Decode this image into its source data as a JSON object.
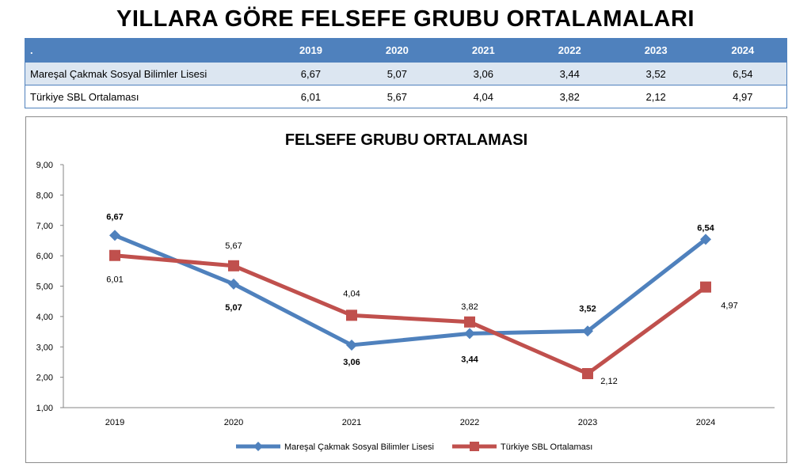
{
  "page_title": "YILLARA GÖRE FELSEFE GRUBU  ORTALAMALARI",
  "table": {
    "corner": ".",
    "years": [
      "2019",
      "2020",
      "2021",
      "2022",
      "2023",
      "2024"
    ],
    "rows": [
      {
        "label": "Mareşal Çakmak Sosyal Bilimler Lisesi",
        "values": [
          "6,67",
          "5,07",
          "3,06",
          "3,44",
          "3,52",
          "6,54"
        ]
      },
      {
        "label": "Türkiye SBL Ortalaması",
        "values": [
          "6,01",
          "5,67",
          "4,04",
          "3,82",
          "2,12",
          "4,97"
        ]
      }
    ]
  },
  "chart_data": {
    "type": "line",
    "title": "FELSEFE GRUBU ORTALAMASI",
    "categories": [
      "2019",
      "2020",
      "2021",
      "2022",
      "2023",
      "2024"
    ],
    "ylim": [
      1,
      9
    ],
    "yticks": [
      "1,00",
      "2,00",
      "3,00",
      "4,00",
      "5,00",
      "6,00",
      "7,00",
      "8,00",
      "9,00"
    ],
    "grid": false,
    "legend_position": "bottom",
    "series": [
      {
        "name": "Mareşal Çakmak Sosyal Bilimler Lisesi",
        "values": [
          6.67,
          5.07,
          3.06,
          3.44,
          3.52,
          6.54
        ],
        "labels": [
          "6,67",
          "5,07",
          "3,06",
          "3,44",
          "3,52",
          "6,54"
        ],
        "color": "#4f81bd",
        "marker": "diamond"
      },
      {
        "name": "Türkiye SBL Ortalaması",
        "values": [
          6.01,
          5.67,
          4.04,
          3.82,
          2.12,
          4.97
        ],
        "labels": [
          "6,01",
          "5,67",
          "4,04",
          "3,82",
          "2,12",
          "4,97"
        ],
        "color": "#c0504d",
        "marker": "square"
      }
    ]
  }
}
